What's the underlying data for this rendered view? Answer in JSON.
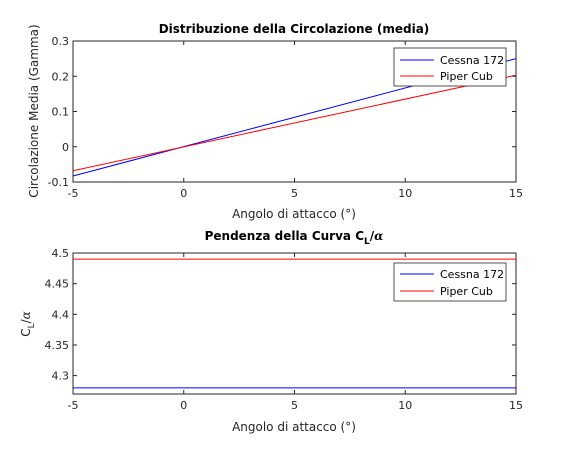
{
  "chart_data": [
    {
      "type": "line",
      "title": "Distribuzione della Circolazione (media)",
      "xlabel": "Angolo di attacco (°)",
      "ylabel": "Circolazione Media (Gamma)",
      "xlim": [
        -5,
        15
      ],
      "ylim": [
        -0.1,
        0.3
      ],
      "xticks": [
        "-5",
        "0",
        "5",
        "10",
        "15"
      ],
      "yticks": [
        "-0.1",
        "0",
        "0.1",
        "0.2",
        "0.3"
      ],
      "grid": false,
      "legend_position": "top-right",
      "series": [
        {
          "name": "Cessna 172",
          "color": "#0000ff",
          "x": [
            -5,
            15
          ],
          "y": [
            -0.083,
            0.25
          ]
        },
        {
          "name": "Piper Cub",
          "color": "#ff0000",
          "x": [
            -5,
            15
          ],
          "y": [
            -0.068,
            0.203
          ]
        }
      ]
    },
    {
      "type": "line",
      "title": "Pendenza della Curva C_L/α",
      "title_parts": {
        "pre": "Pendenza della Curva C",
        "sub": "L",
        "post": "/",
        "alpha": "α"
      },
      "xlabel": "Angolo di attacco (°)",
      "ylabel": "C_L/α",
      "ylabel_parts": {
        "pre": "C",
        "sub": "L",
        "post": "/",
        "alpha": "α"
      },
      "xlim": [
        -5,
        15
      ],
      "ylim": [
        4.27,
        4.5
      ],
      "xticks": [
        "-5",
        "0",
        "5",
        "10",
        "15"
      ],
      "yticks": [
        "4.3",
        "4.35",
        "4.4",
        "4.45",
        "4.5"
      ],
      "grid": false,
      "legend_position": "top-right",
      "series": [
        {
          "name": "Cessna 172",
          "color": "#0000ff",
          "x": [
            -5,
            15
          ],
          "y": [
            4.28,
            4.28
          ]
        },
        {
          "name": "Piper Cub",
          "color": "#ff0000",
          "x": [
            -5,
            15
          ],
          "y": [
            4.49,
            4.49
          ]
        }
      ]
    }
  ]
}
